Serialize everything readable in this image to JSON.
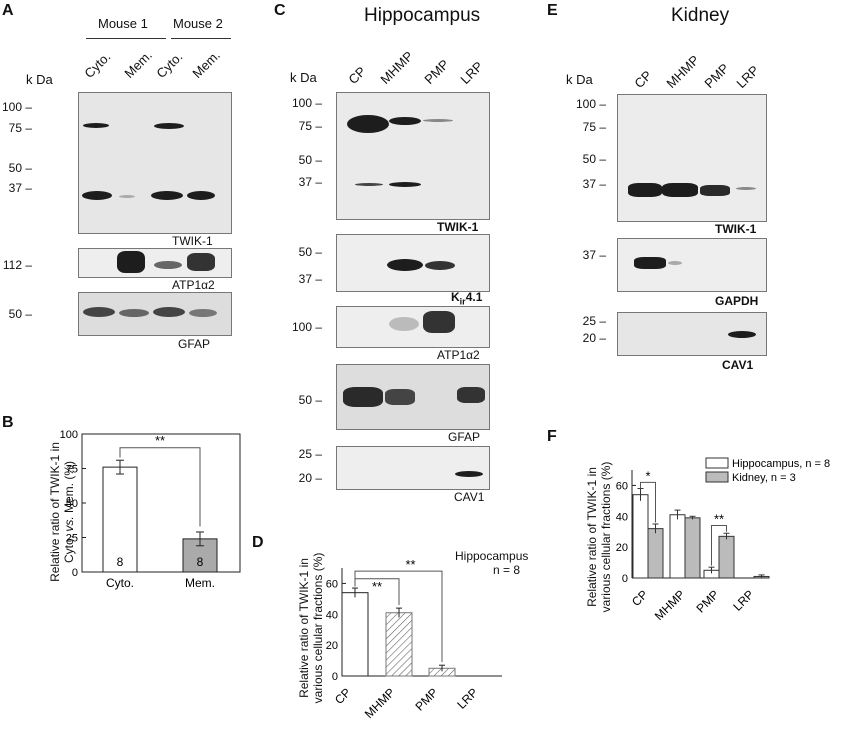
{
  "panelA": {
    "letter": "A",
    "mouse1": "Mouse 1",
    "mouse2": "Mouse 2",
    "lanes": [
      "Cyto.",
      "Mem.",
      "Cyto.",
      "Mem."
    ],
    "kda": "k Da",
    "mw_main": [
      "100 –",
      "75 –",
      "50 –",
      "37 –"
    ],
    "mw_atp": "112 –",
    "mw_gfap": "50 –",
    "label_twik": "TWIK-1",
    "label_atp": "ATP1α2",
    "label_gfap": "GFAP"
  },
  "panelC": {
    "letter": "C",
    "title": "Hippocampus",
    "kda": "k Da",
    "lanes": [
      "CP",
      "MHMP",
      "PMP",
      "LRP"
    ],
    "mw_twik": [
      "100 –",
      "75 –",
      "50 –",
      "37 –"
    ],
    "mw_kir": [
      "50 –",
      "37 –"
    ],
    "mw_atp": "100 –",
    "mw_gfap": "50 –",
    "mw_cav": [
      "25 –",
      "20 –"
    ],
    "label_twik": "TWIK-1",
    "label_kir_main": "K",
    "label_kir_sub": "ir",
    "label_kir_tail": "4.1",
    "label_atp": "ATP1α2",
    "label_gfap": "GFAP",
    "label_cav": "CAV1"
  },
  "panelE": {
    "letter": "E",
    "title": "Kidney",
    "kda": "k Da",
    "lanes": [
      "CP",
      "MHMP",
      "PMP",
      "LRP"
    ],
    "mw_twik": [
      "100 –",
      "75 –",
      "50 –",
      "37 –"
    ],
    "mw_gapdh": "37 –",
    "mw_cav": [
      "25 –",
      "20 –"
    ],
    "label_twik": "TWIK-1",
    "label_gapdh": "GAPDH",
    "label_cav": "CAV1"
  },
  "panelB": {
    "letter": "B",
    "significance": "**",
    "n_labels": [
      "8",
      "8"
    ],
    "y_axis_label_line1": "Relative ratio of TWIK-1 in",
    "y_axis_label_line2_pre": "Cyto. ",
    "y_axis_label_line2_em": "vs.",
    "y_axis_label_line2_post": " Mem. (%)"
  },
  "panelD": {
    "letter": "D",
    "legend_line1": "Hippocampus",
    "legend_line2": "n = 8",
    "significance": [
      "**",
      "**"
    ],
    "y_axis_label_line1": "Relative ratio of TWIK-1 in",
    "y_axis_label_line2": "various cellular fractions (%)"
  },
  "panelF": {
    "letter": "F",
    "significance": [
      "*",
      "**"
    ],
    "y_axis_label_line1": "Relative ratio of TWIK-1 in",
    "y_axis_label_line2": "various cellular fractions (%)"
  },
  "chart_data": [
    {
      "panel": "B",
      "type": "bar",
      "categories": [
        "Cyto.",
        "Mem."
      ],
      "values": [
        76,
        24
      ],
      "errors": [
        5,
        5
      ],
      "ylim": [
        0,
        100
      ],
      "yticks": [
        "0",
        "25",
        "50",
        "75",
        "100"
      ],
      "xlabel": "",
      "ylabel": "Relative ratio of TWIK-1 in Cyto. vs. Mem. (%)",
      "colors": [
        "#ffffff",
        "#aaaaaa"
      ]
    },
    {
      "panel": "D",
      "type": "bar",
      "categories": [
        "CP",
        "MHMP",
        "PMP",
        "LRP"
      ],
      "values": [
        54,
        41,
        5,
        0
      ],
      "errors": [
        3,
        3,
        2,
        0
      ],
      "ylim": [
        0,
        70
      ],
      "yticks": [
        "0",
        "20",
        "40",
        "60"
      ],
      "xlabel": "",
      "ylabel": "Relative ratio of TWIK-1 in various cellular fractions (%)"
    },
    {
      "panel": "F",
      "type": "bar",
      "categories": [
        "CP",
        "MHMP",
        "PMP",
        "LRP"
      ],
      "series": [
        {
          "name": "Hippocampus, n = 8",
          "values": [
            54,
            41,
            5,
            0
          ],
          "errors": [
            4,
            3,
            2,
            0
          ],
          "color": "#ffffff"
        },
        {
          "name": "Kidney, n = 3",
          "values": [
            32,
            39,
            27,
            1
          ],
          "errors": [
            3,
            1,
            2,
            1
          ],
          "color": "#bbbbbb"
        }
      ],
      "ylim": [
        0,
        70
      ],
      "yticks": [
        "0",
        "20",
        "40",
        "60"
      ],
      "xlabel": "",
      "ylabel": "Relative ratio of TWIK-1 in various cellular fractions (%)",
      "legend_position": "top-right"
    }
  ]
}
